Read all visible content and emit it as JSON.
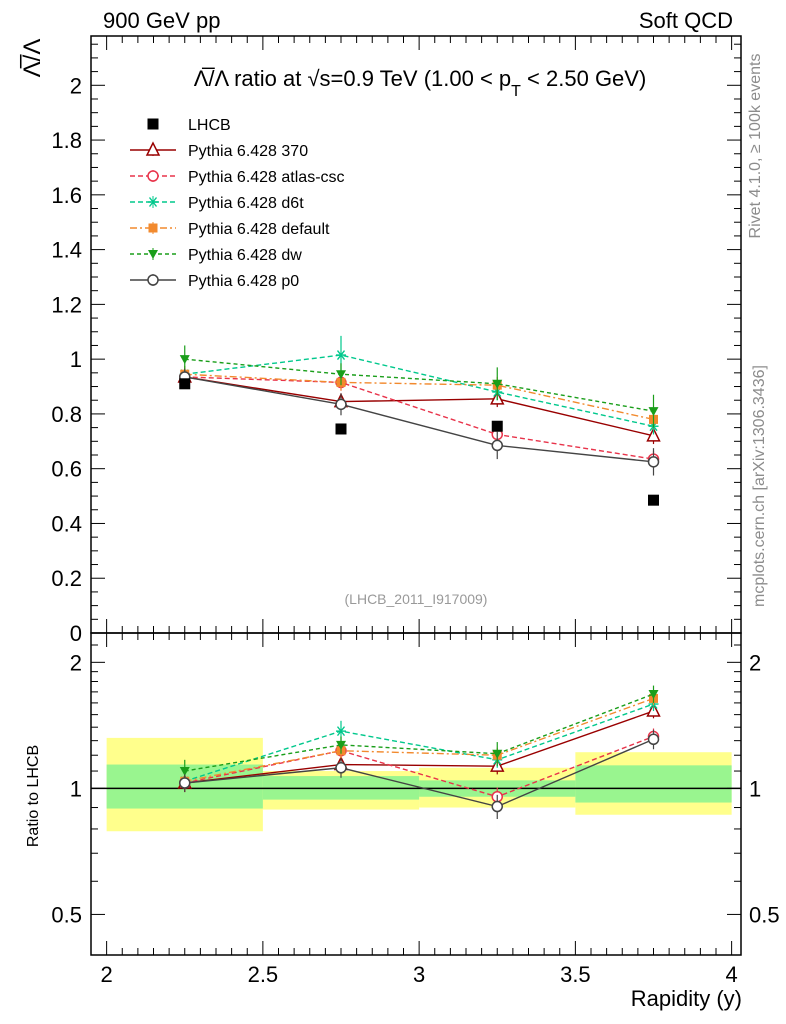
{
  "header": {
    "left": "900 GeV pp",
    "right": "Soft QCD"
  },
  "side_labels": {
    "rivet": "Rivet 4.1.0, ≥ 100k events",
    "mcplots": "mcplots.cern.ch [arXiv:1306.3436]"
  },
  "chart_data": {
    "type": "line",
    "title": "Λ̅/Λ ratio at √s=0.9 TeV (1.00 < pT < 2.50 GeV)",
    "title_parts": {
      "main": "Λ̅/Λ ratio at √s=0.9 TeV (1.00 < p",
      "sub": "T",
      "tail": " < 2.50 GeV)"
    },
    "ylabel": "Λ̅/Λ",
    "xlabel": "Rapidity (y)",
    "ratio_ylabel": "Ratio to LHCB",
    "analysis_id": "(LHCB_2011_I917009)",
    "xlim": [
      1.95,
      4.03
    ],
    "ylim": [
      0,
      2.18
    ],
    "ratio_ylim": [
      0.4,
      2.35
    ],
    "x_ticks": [
      "2",
      "2.5",
      "3",
      "3.5",
      "4"
    ],
    "x_tick_values": [
      2,
      2.5,
      3,
      3.5,
      4
    ],
    "y_ticks": [
      "0",
      "0.2",
      "0.4",
      "0.6",
      "0.8",
      "1",
      "1.2",
      "1.4",
      "1.6",
      "1.8",
      "2"
    ],
    "y_tick_values": [
      0,
      0.2,
      0.4,
      0.6,
      0.8,
      1,
      1.2,
      1.4,
      1.6,
      1.8,
      2
    ],
    "ratio_ticks": [
      "0.5",
      "1",
      "2"
    ],
    "ratio_tick_values": [
      0.5,
      1,
      2
    ],
    "x": [
      2.25,
      2.75,
      3.25,
      3.75
    ],
    "bin_edges": [
      2.0,
      2.5,
      3.0,
      3.5,
      4.0
    ],
    "data": {
      "name": "LHCB",
      "values": [
        0.91,
        0.745,
        0.755,
        0.485
      ],
      "band_stat": [
        [
          0.895,
          1.14
        ],
        [
          0.94,
          1.07
        ],
        [
          0.955,
          1.045
        ],
        [
          0.925,
          1.135
        ]
      ],
      "band_total": [
        [
          0.79,
          1.32
        ],
        [
          0.89,
          1.1
        ],
        [
          0.9,
          1.12
        ],
        [
          0.865,
          1.22
        ]
      ]
    },
    "series": [
      {
        "name": "Pythia 6.428 370",
        "color": "#990000",
        "dash": "",
        "marker": "triangle-open",
        "values": [
          0.935,
          0.845,
          0.855,
          0.72
        ],
        "errors": [
          0.03,
          0.03,
          0.03,
          0.03
        ],
        "ratio": [
          1.03,
          1.14,
          1.13,
          1.53
        ],
        "ratio_err": [
          0.05,
          0.05,
          0.05,
          0.06
        ]
      },
      {
        "name": "Pythia 6.428 atlas-csc",
        "color": "#e8334a",
        "dash": "5,3",
        "marker": "circle-open",
        "values": [
          0.935,
          0.915,
          0.725,
          0.635
        ],
        "errors": [
          0.03,
          0.03,
          0.03,
          0.03
        ],
        "ratio": [
          1.03,
          1.23,
          0.955,
          1.33
        ],
        "ratio_err": [
          0.05,
          0.05,
          0.05,
          0.06
        ]
      },
      {
        "name": "Pythia 6.428 d6t",
        "color": "#00c88c",
        "dash": "5,3",
        "marker": "asterisk",
        "values": [
          0.945,
          1.015,
          0.88,
          0.755
        ],
        "errors": [
          0.03,
          0.07,
          0.03,
          0.03
        ],
        "ratio": [
          1.04,
          1.37,
          1.17,
          1.59
        ],
        "ratio_err": [
          0.05,
          0.08,
          0.05,
          0.06
        ]
      },
      {
        "name": "Pythia 6.428 default",
        "color": "#f28a2e",
        "dash": "7,3,2,3",
        "marker": "square",
        "values": [
          0.945,
          0.915,
          0.905,
          0.78
        ],
        "errors": [
          0.03,
          0.03,
          0.03,
          0.03
        ],
        "ratio": [
          1.04,
          1.23,
          1.2,
          1.64
        ],
        "ratio_err": [
          0.05,
          0.05,
          0.05,
          0.06
        ]
      },
      {
        "name": "Pythia 6.428 dw",
        "color": "#1a9e1a",
        "dash": "4,3",
        "marker": "triangle-down",
        "values": [
          1.0,
          0.945,
          0.91,
          0.81
        ],
        "errors": [
          0.05,
          0.04,
          0.06,
          0.06
        ],
        "ratio": [
          1.1,
          1.27,
          1.21,
          1.68
        ],
        "ratio_err": [
          0.07,
          0.06,
          0.08,
          0.08
        ]
      },
      {
        "name": "Pythia 6.428 p0",
        "color": "#444444",
        "dash": "",
        "marker": "circle-open",
        "values": [
          0.935,
          0.835,
          0.685,
          0.625
        ],
        "errors": [
          0.03,
          0.04,
          0.05,
          0.05
        ],
        "ratio": [
          1.03,
          1.12,
          0.905,
          1.31
        ],
        "ratio_err": [
          0.05,
          0.06,
          0.06,
          0.07
        ]
      }
    ]
  }
}
